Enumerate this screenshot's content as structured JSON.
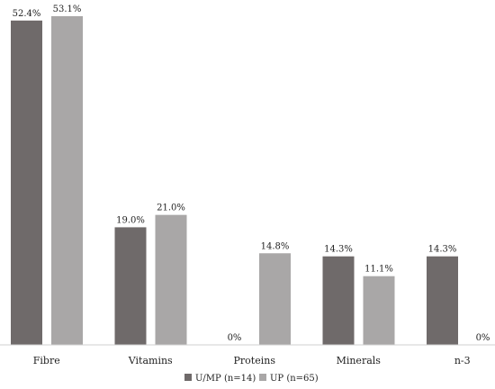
{
  "chart_data": {
    "type": "bar",
    "categories": [
      "Fibre",
      "Vitamins",
      "Proteins",
      "Minerals",
      "n-3"
    ],
    "series": [
      {
        "name": "U/MP (n=14)",
        "values": [
          52.4,
          19.0,
          0,
          14.3,
          14.3
        ],
        "labels": [
          "52.4%",
          "19.0%",
          "0%",
          "14.3%",
          "14.3%"
        ],
        "color": "#6f6a6a"
      },
      {
        "name": "UP (n=65)",
        "values": [
          53.1,
          21.0,
          14.8,
          11.1,
          0
        ],
        "labels": [
          "53.1%",
          "21.0%",
          "14.8%",
          "11.1%",
          "0%"
        ],
        "color": "#a9a7a7"
      }
    ],
    "unit": "%",
    "ylim": [
      0,
      53.1
    ],
    "grid": false,
    "legend_position": "bottom"
  }
}
